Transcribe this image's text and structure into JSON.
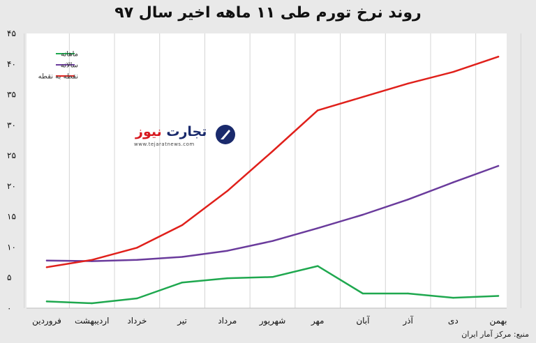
{
  "chart_data": {
    "type": "line",
    "title": "روند نرخ تورم طی ۱۱ ماهه اخیر سال ۹۷",
    "categories": [
      "فروردین",
      "اردیبهشت",
      "خرداد",
      "تیر",
      "مرداد",
      "شهریور",
      "مهر",
      "آبان",
      "آذر",
      "دی",
      "بهمن"
    ],
    "ylim": [
      0,
      45
    ],
    "yticks": [
      0,
      5,
      10,
      15,
      20,
      25,
      30,
      35,
      40,
      45
    ],
    "ytick_labels": [
      "۰",
      "۵",
      "۱۰",
      "۱۵",
      "۲۰",
      "۲۵",
      "۳۰",
      "۳۵",
      "۴۰",
      "۴۵"
    ],
    "grid": "vertical",
    "legend_position": "top-left",
    "series": [
      {
        "name": "ماهانه",
        "color": "#1fa84f",
        "values": [
          1.1,
          0.8,
          1.6,
          4.2,
          4.9,
          5.1,
          6.9,
          2.4,
          2.4,
          1.7,
          2.0
        ]
      },
      {
        "name": "سالانه",
        "color": "#6a3b9c",
        "values": [
          7.8,
          7.7,
          7.9,
          8.4,
          9.4,
          11.0,
          13.1,
          15.3,
          17.8,
          20.6,
          23.3
        ]
      },
      {
        "name": "نقطه به نقطه",
        "color": "#e0201b",
        "values": [
          6.7,
          7.9,
          9.9,
          13.6,
          19.2,
          25.7,
          32.4,
          34.6,
          36.8,
          38.7,
          41.2
        ]
      }
    ]
  },
  "logo": {
    "name_main": "تجارت",
    "name_accent": "نیوز",
    "url": "www.tejaratnews.com",
    "icon": "tejaratnews-logo-icon"
  },
  "source_note": "منبع: مرکز آمار ایران"
}
